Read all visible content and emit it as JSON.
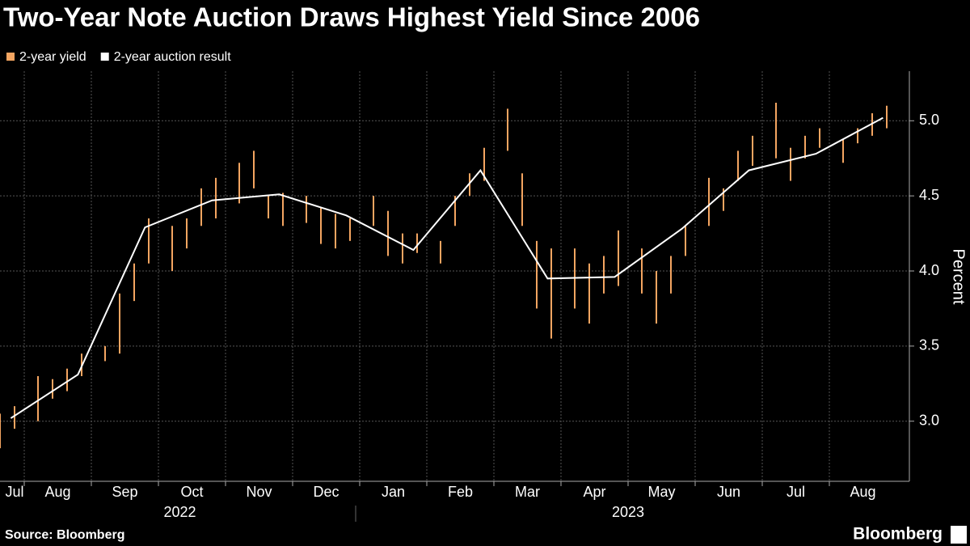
{
  "chart_data": {
    "type": "range-line",
    "title": "Two-Year Note Auction Draws Highest Yield Since 2006",
    "y_label": "Percent",
    "source": "Source: Bloomberg",
    "brand": "Bloomberg",
    "ylim": [
      2.6,
      5.33
    ],
    "yticks": [
      {
        "value": 3,
        "label": "3.0"
      },
      3.5,
      {
        "value": 4,
        "label": "4.0"
      },
      4.5,
      {
        "value": 5,
        "label": "5.0"
      }
    ],
    "grid": true,
    "xticks": [
      {
        "value": "2022-07",
        "label": "Jul"
      },
      {
        "value": "2022-08",
        "label": "Aug"
      },
      {
        "value": "2022-09",
        "label": "Sep"
      },
      {
        "value": "2022-10",
        "label": "Oct"
      },
      {
        "value": "2022-11",
        "label": "Nov"
      },
      {
        "value": "2022-12",
        "label": "Dec"
      },
      {
        "value": "2023-01",
        "label": "Jan"
      },
      {
        "value": "2023-02",
        "label": "Feb"
      },
      {
        "value": "2023-03",
        "label": "Mar"
      },
      {
        "value": "2023-04",
        "label": "Apr"
      },
      {
        "value": "2023-05",
        "label": "May"
      },
      {
        "value": "2023-06",
        "label": "Jun"
      },
      {
        "value": "2023-07",
        "label": "Jul"
      },
      {
        "value": "2023-08",
        "label": "Aug"
      }
    ],
    "years": [
      "2022",
      "2023"
    ],
    "series": [
      {
        "name": "2-year yield",
        "color": "#f4a561",
        "kind": "range",
        "x": [
          "2022-07",
          "2022-07",
          "2022-08",
          "2022-08",
          "2022-08",
          "2022-08",
          "2022-09",
          "2022-09",
          "2022-09",
          "2022-09",
          "2022-10",
          "2022-10",
          "2022-10",
          "2022-10",
          "2022-11",
          "2022-11",
          "2022-11",
          "2022-11",
          "2022-12",
          "2022-12",
          "2022-12",
          "2022-12",
          "2023-01",
          "2023-01",
          "2023-01",
          "2023-01",
          "2023-02",
          "2023-02",
          "2023-02",
          "2023-02",
          "2023-03",
          "2023-03",
          "2023-03",
          "2023-03",
          "2023-04",
          "2023-04",
          "2023-04",
          "2023-04",
          "2023-05",
          "2023-05",
          "2023-05",
          "2023-05",
          "2023-06",
          "2023-06",
          "2023-06",
          "2023-06",
          "2023-07",
          "2023-07",
          "2023-07",
          "2023-07",
          "2023-08",
          "2023-08",
          "2023-08",
          "2023-08"
        ],
        "low": [
          2.82,
          2.95,
          3.0,
          3.15,
          3.2,
          3.3,
          3.4,
          3.45,
          3.8,
          4.05,
          4.0,
          4.15,
          4.3,
          4.35,
          4.45,
          4.55,
          4.35,
          4.3,
          4.32,
          4.18,
          4.15,
          4.2,
          4.3,
          4.1,
          4.05,
          4.12,
          4.05,
          4.3,
          4.5,
          4.6,
          4.8,
          4.3,
          3.75,
          3.55,
          3.75,
          3.65,
          3.85,
          3.9,
          3.85,
          3.65,
          3.85,
          4.1,
          4.3,
          4.4,
          4.6,
          4.7,
          4.75,
          4.6,
          4.75,
          4.82,
          4.72,
          4.85,
          4.9,
          4.95
        ],
        "high": [
          3.05,
          3.1,
          3.3,
          3.28,
          3.35,
          3.45,
          3.5,
          3.85,
          4.05,
          4.35,
          4.3,
          4.35,
          4.55,
          4.62,
          4.72,
          4.8,
          4.5,
          4.52,
          4.5,
          4.42,
          4.38,
          4.35,
          4.5,
          4.4,
          4.25,
          4.25,
          4.2,
          4.5,
          4.65,
          4.82,
          5.08,
          4.65,
          4.2,
          4.15,
          4.15,
          4.05,
          4.1,
          4.27,
          4.15,
          4.0,
          4.1,
          4.3,
          4.62,
          4.55,
          4.8,
          4.9,
          5.12,
          4.82,
          4.9,
          4.95,
          4.88,
          4.95,
          5.05,
          5.1
        ]
      },
      {
        "name": "2-year auction result",
        "color": "#ffffff",
        "kind": "line",
        "x": [
          "2022-07",
          "2022-08",
          "2022-09",
          "2022-10",
          "2022-11",
          "2022-12",
          "2023-01",
          "2023-02",
          "2023-03",
          "2023-04",
          "2023-05",
          "2023-06",
          "2023-07",
          "2023-08"
        ],
        "values": [
          3.02,
          3.31,
          4.29,
          4.47,
          4.51,
          4.37,
          4.14,
          4.67,
          3.95,
          3.96,
          4.28,
          4.67,
          4.78,
          5.02
        ]
      }
    ]
  }
}
